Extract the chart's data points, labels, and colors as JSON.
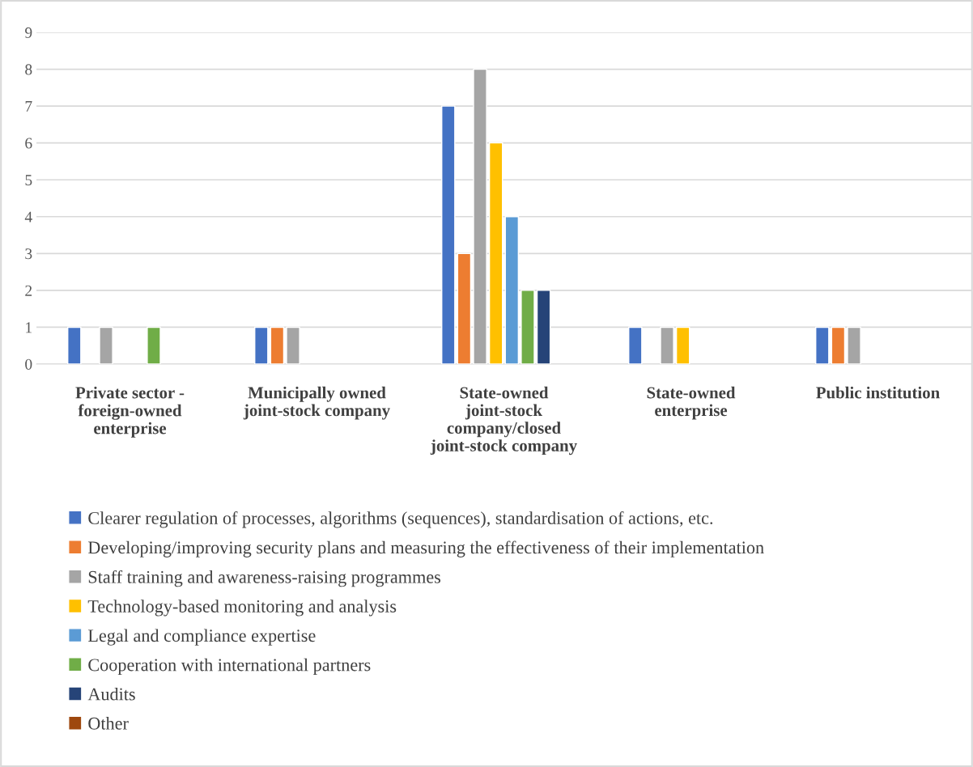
{
  "chart_data": {
    "type": "bar",
    "categories": [
      "Private sector - foreign-owned enterprise",
      "Municipally owned joint-stock company",
      "State-owned joint-stock company/closed joint-stock company",
      "State-owned enterprise",
      "Public institution"
    ],
    "series": [
      {
        "name": "Clearer regulation of processes, algorithms (sequences), standardisation of actions, etc.",
        "color": "#4472c4",
        "values": [
          1,
          1,
          7,
          1,
          1
        ]
      },
      {
        "name": "Developing/improving security plans and measuring the effectiveness of their implementation",
        "color": "#ed7d31",
        "values": [
          null,
          1,
          3,
          null,
          1
        ]
      },
      {
        "name": "Staff training and awareness-raising programmes",
        "color": "#a5a5a5",
        "values": [
          1,
          1,
          8,
          1,
          1
        ]
      },
      {
        "name": "Technology-based monitoring and analysis",
        "color": "#ffc000",
        "values": [
          null,
          null,
          6,
          1,
          null
        ]
      },
      {
        "name": "Legal and compliance expertise",
        "color": "#5b9bd5",
        "values": [
          null,
          null,
          4,
          null,
          null
        ]
      },
      {
        "name": "Cooperation with international partners",
        "color": "#70ad47",
        "values": [
          1,
          null,
          2,
          null,
          null
        ]
      },
      {
        "name": "Audits",
        "color": "#264478",
        "values": [
          null,
          null,
          2,
          null,
          null
        ]
      },
      {
        "name": "Other",
        "color": "#9e480e",
        "values": [
          null,
          null,
          null,
          null,
          null
        ]
      }
    ],
    "ylim": [
      0,
      9
    ],
    "yticks": [
      0,
      1,
      2,
      3,
      4,
      5,
      6,
      7,
      8,
      9
    ],
    "grid": "y",
    "legend": "bottom"
  }
}
